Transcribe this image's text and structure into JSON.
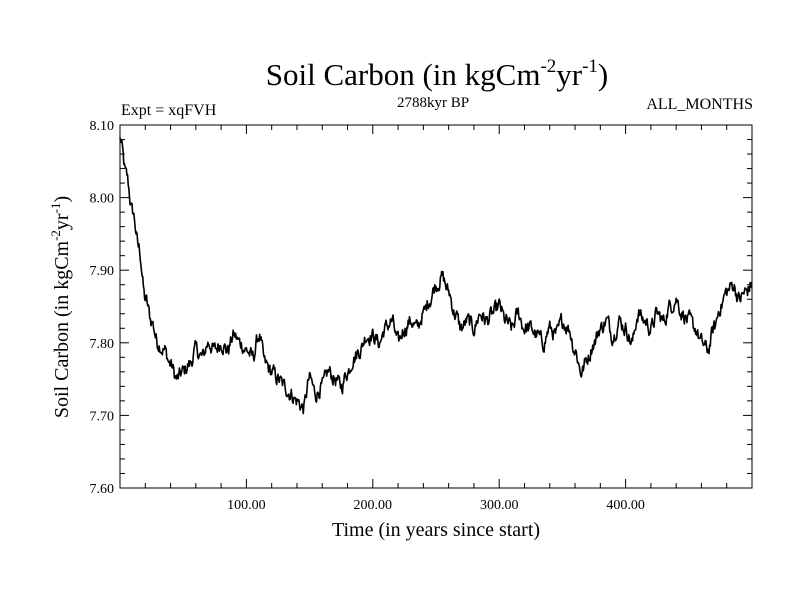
{
  "chart_data": {
    "type": "line",
    "title": {
      "main": "Soil Carbon (in kgCm",
      "sup1": "-2",
      "mid": "yr",
      "sup2": "-1",
      "end": ")"
    },
    "subtitle_left": "Expt = xqFVH",
    "subtitle_center": "2788kyr BP",
    "subtitle_right": "ALL_MONTHS",
    "xlabel": "Time (in years since start)",
    "ylabel": {
      "main": "Soil Carbon (in kgCm",
      "sup1": "-2",
      "mid": "yr",
      "sup2": "-1",
      "end": ")"
    },
    "xlim": [
      0,
      500
    ],
    "ylim": [
      7.6,
      8.1
    ],
    "x_ticks": [
      {
        "value": 100,
        "label": "100.00"
      },
      {
        "value": 200,
        "label": "200.00"
      },
      {
        "value": 300,
        "label": "300.00"
      },
      {
        "value": 400,
        "label": "400.00"
      }
    ],
    "y_ticks": [
      {
        "value": 7.6,
        "label": "7.60"
      },
      {
        "value": 7.7,
        "label": "7.70"
      },
      {
        "value": 7.8,
        "label": "7.80"
      },
      {
        "value": 7.9,
        "label": "7.90"
      },
      {
        "value": 8.0,
        "label": "8.00"
      },
      {
        "value": 8.1,
        "label": "8.10"
      }
    ],
    "series": [
      {
        "name": "Soil Carbon",
        "color": "#000000",
        "x": [
          0,
          5,
          10,
          15,
          20,
          25,
          30,
          35,
          40,
          45,
          50,
          55,
          60,
          65,
          70,
          75,
          80,
          85,
          90,
          95,
          100,
          105,
          110,
          115,
          120,
          125,
          130,
          135,
          140,
          145,
          150,
          155,
          160,
          165,
          170,
          175,
          180,
          185,
          190,
          195,
          200,
          205,
          210,
          215,
          220,
          225,
          230,
          235,
          240,
          245,
          250,
          255,
          260,
          265,
          270,
          275,
          280,
          285,
          290,
          295,
          300,
          305,
          310,
          315,
          320,
          325,
          330,
          335,
          340,
          345,
          350,
          355,
          360,
          365,
          370,
          375,
          380,
          385,
          390,
          395,
          400,
          405,
          410,
          415,
          420,
          425,
          430,
          435,
          440,
          445,
          450,
          455,
          460,
          465,
          470,
          475,
          480,
          485,
          490,
          495,
          500
        ],
        "values": [
          8.08,
          8.03,
          7.98,
          7.93,
          7.86,
          7.83,
          7.8,
          7.79,
          7.77,
          7.75,
          7.76,
          7.77,
          7.79,
          7.78,
          7.8,
          7.79,
          7.8,
          7.79,
          7.81,
          7.8,
          7.79,
          7.78,
          7.81,
          7.77,
          7.76,
          7.75,
          7.74,
          7.73,
          7.72,
          7.71,
          7.75,
          7.73,
          7.74,
          7.76,
          7.75,
          7.74,
          7.76,
          7.78,
          7.79,
          7.81,
          7.81,
          7.8,
          7.82,
          7.83,
          7.8,
          7.82,
          7.83,
          7.82,
          7.84,
          7.86,
          7.88,
          7.89,
          7.87,
          7.84,
          7.82,
          7.83,
          7.82,
          7.84,
          7.83,
          7.84,
          7.85,
          7.83,
          7.82,
          7.84,
          7.82,
          7.82,
          7.81,
          7.8,
          7.82,
          7.81,
          7.83,
          7.82,
          7.79,
          7.76,
          7.78,
          7.8,
          7.82,
          7.83,
          7.81,
          7.83,
          7.82,
          7.8,
          7.84,
          7.83,
          7.82,
          7.84,
          7.83,
          7.85,
          7.86,
          7.84,
          7.83,
          7.82,
          7.8,
          7.79,
          7.82,
          7.85,
          7.87,
          7.88,
          7.86,
          7.87,
          7.88
        ]
      }
    ]
  }
}
